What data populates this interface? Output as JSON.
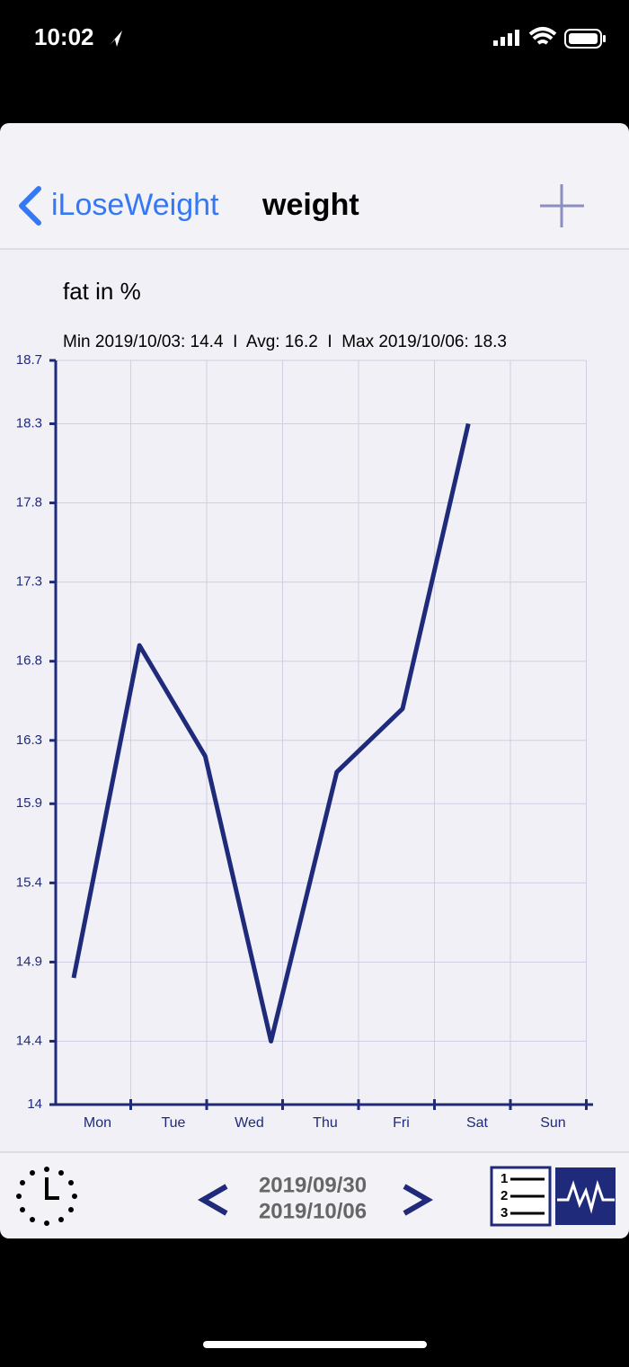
{
  "status": {
    "time": "10:02"
  },
  "nav": {
    "back": "iLoseWeight",
    "title": "weight"
  },
  "chart_data": {
    "type": "line",
    "title": "fat in %",
    "subtitle": "Min 2019/10/03: 14.4  I  Avg: 16.2  I  Max 2019/10/06: 18.3",
    "categories": [
      "Mon",
      "Tue",
      "Wed",
      "Thu",
      "Fri",
      "Sat",
      "Sun"
    ],
    "values": [
      14.8,
      16.9,
      16.2,
      14.4,
      16.1,
      16.5,
      18.3
    ],
    "color": "#1f2a7a",
    "ylim": [
      14.0,
      18.7
    ],
    "yticks": [
      14.0,
      14.4,
      14.9,
      15.4,
      15.9,
      16.3,
      16.8,
      17.3,
      17.8,
      18.3,
      18.7
    ],
    "grid": true
  },
  "toolbar": {
    "date_start": "2019/09/30",
    "date_end": "2019/10/06"
  }
}
